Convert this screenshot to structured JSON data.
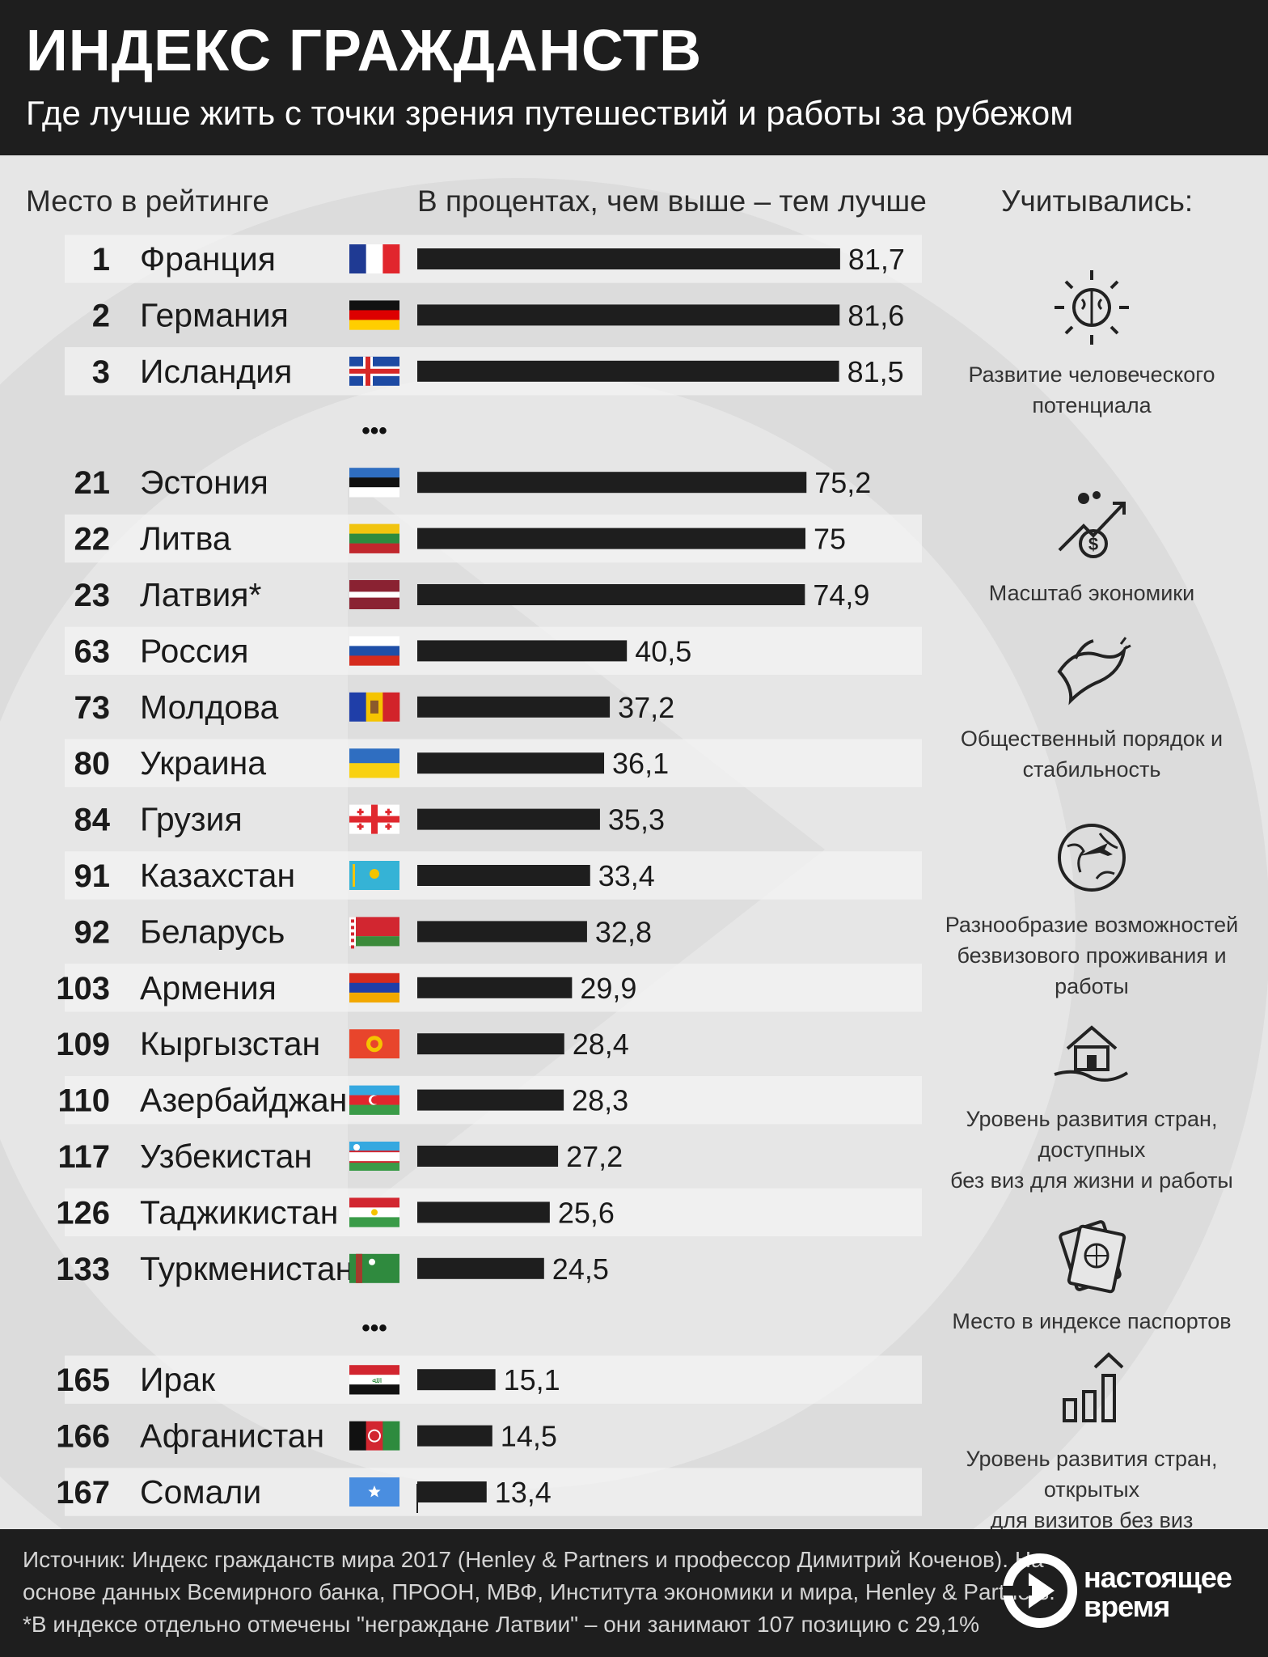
{
  "header": {
    "title": "ИНДЕКС ГРАЖДАНСТВ",
    "subtitle": "Где лучше жить с точки зрения путешествий и работы за рубежом"
  },
  "columns": {
    "rank": "Место в рейтинге",
    "percent": "В процентах, чем выше – тем лучше",
    "factors": "Учитывались:"
  },
  "chart_data": {
    "type": "bar",
    "orientation": "horizontal",
    "xlabel": "В процентах, чем выше – тем лучше",
    "xlim": [
      0,
      100
    ],
    "axis_zero_label": "0",
    "rows": [
      {
        "rank": "1",
        "country": "Франция",
        "value": 81.7,
        "label": "81,7",
        "flag": "fr"
      },
      {
        "rank": "2",
        "country": "Германия",
        "value": 81.6,
        "label": "81,6",
        "flag": "de"
      },
      {
        "rank": "3",
        "country": "Исландия",
        "value": 81.5,
        "label": "81,5",
        "flag": "is"
      },
      {
        "ellipsis": "•••"
      },
      {
        "rank": "21",
        "country": "Эстония",
        "value": 75.2,
        "label": "75,2",
        "flag": "ee"
      },
      {
        "rank": "22",
        "country": "Литва",
        "value": 75,
        "label": "75",
        "flag": "lt"
      },
      {
        "rank": "23",
        "country": "Латвия*",
        "value": 74.9,
        "label": "74,9",
        "flag": "lv"
      },
      {
        "rank": "63",
        "country": "Россия",
        "value": 40.5,
        "label": "40,5",
        "flag": "ru"
      },
      {
        "rank": "73",
        "country": "Молдова",
        "value": 37.2,
        "label": "37,2",
        "flag": "md"
      },
      {
        "rank": "80",
        "country": "Украина",
        "value": 36.1,
        "label": "36,1",
        "flag": "ua"
      },
      {
        "rank": "84",
        "country": "Грузия",
        "value": 35.3,
        "label": "35,3",
        "flag": "ge"
      },
      {
        "rank": "91",
        "country": "Казахстан",
        "value": 33.4,
        "label": "33,4",
        "flag": "kz"
      },
      {
        "rank": "92",
        "country": "Беларусь",
        "value": 32.8,
        "label": "32,8",
        "flag": "by"
      },
      {
        "rank": "103",
        "country": "Армения",
        "value": 29.9,
        "label": "29,9",
        "flag": "am"
      },
      {
        "rank": "109",
        "country": "Кыргызстан",
        "value": 28.4,
        "label": "28,4",
        "flag": "kg"
      },
      {
        "rank": "110",
        "country": "Азербайджан",
        "value": 28.3,
        "label": "28,3",
        "flag": "az"
      },
      {
        "rank": "117",
        "country": "Узбекистан",
        "value": 27.2,
        "label": "27,2",
        "flag": "uz"
      },
      {
        "rank": "126",
        "country": "Таджикистан",
        "value": 25.6,
        "label": "25,6",
        "flag": "tj"
      },
      {
        "rank": "133",
        "country": "Туркменистан",
        "value": 24.5,
        "label": "24,5",
        "flag": "tm"
      },
      {
        "ellipsis": "•••"
      },
      {
        "rank": "165",
        "country": "Ирак",
        "value": 15.1,
        "label": "15,1",
        "flag": "iq"
      },
      {
        "rank": "166",
        "country": "Афганистан",
        "value": 14.5,
        "label": "14,5",
        "flag": "af"
      },
      {
        "rank": "167",
        "country": "Сомали",
        "value": 13.4,
        "label": "13,4",
        "flag": "so"
      }
    ]
  },
  "factors": [
    {
      "icon": "brain-icon",
      "lines": [
        "Развитие человеческого",
        "потенциала"
      ]
    },
    {
      "icon": "economy-growth-icon",
      "lines": [
        "Масштаб экономики"
      ]
    },
    {
      "icon": "dove-icon",
      "lines": [
        "Общественный порядок и",
        "стабильность"
      ]
    },
    {
      "icon": "globe-plane-icon",
      "lines": [
        "Разнообразие возможностей",
        "безвизового проживания и работы"
      ]
    },
    {
      "icon": "house-hand-icon",
      "lines": [
        "Уровень развития стран, доступных",
        "без виз для жизни и работы"
      ]
    },
    {
      "icon": "passport-icon",
      "lines": [
        "Место в индексе паспортов"
      ]
    },
    {
      "icon": "bar-growth-icon",
      "lines": [
        "Уровень развития стран, открытых",
        "для визитов без виз"
      ]
    }
  ],
  "footer": {
    "source_lines": [
      "Источник: Индекс гражданств мира 2017 (Henley & Partners и профессор Димитрий Коченов). На",
      "основе данных Всемирного банка, ПРООН, МВФ, Института экономики и мира, Henley & Partners.",
      "*В индексе отдельно отмечены \"неграждане Латвии\" – они занимают 107 позицию с 29,1%"
    ],
    "logo_line1": "настоящее",
    "logo_line2": "время"
  },
  "colors": {
    "header_bg": "#1e1e1e",
    "page_bg": "#e6e6e6",
    "bar": "#1e1e1e",
    "row_stripe": "#f2f2f2"
  }
}
